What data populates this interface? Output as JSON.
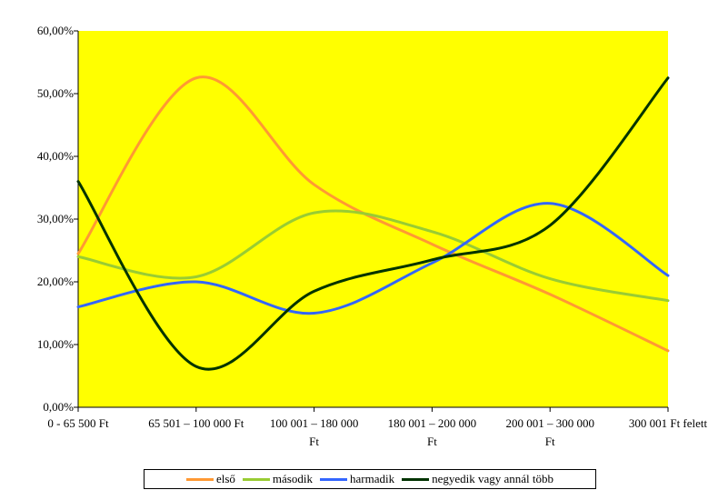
{
  "chart_data": {
    "type": "line",
    "smooth": true,
    "title": "",
    "xlabel": "",
    "ylabel": "",
    "ylim": [
      0,
      60
    ],
    "y_ticks": [
      "0,00%",
      "10,00%",
      "20,00%",
      "30,00%",
      "40,00%",
      "50,00%",
      "60,00%"
    ],
    "categories": [
      [
        "0 - 65 500 Ft"
      ],
      [
        "65 501 – 100 000 Ft"
      ],
      [
        "100 001 – 180 000",
        "Ft"
      ],
      [
        "180 001 – 200 000",
        "Ft"
      ],
      [
        "200 001 – 300 000",
        "Ft"
      ],
      [
        "300 001 Ft felett"
      ]
    ],
    "plot_background": "#FFFF00",
    "grid": false,
    "legend_position": "bottom",
    "series": [
      {
        "name": "első",
        "color": "#FF9933",
        "values": [
          24.5,
          52.5,
          35.5,
          26,
          18,
          9
        ]
      },
      {
        "name": "második",
        "color": "#99CC33",
        "values": [
          24,
          20.8,
          31,
          28,
          20.5,
          17
        ]
      },
      {
        "name": "harmadik",
        "color": "#3366FF",
        "values": [
          16,
          20,
          15,
          23,
          32.5,
          21
        ]
      },
      {
        "name": "negyedik vagy annál több",
        "color": "#003300",
        "values": [
          36,
          6.5,
          18.5,
          23.5,
          29,
          52.5
        ]
      }
    ]
  }
}
